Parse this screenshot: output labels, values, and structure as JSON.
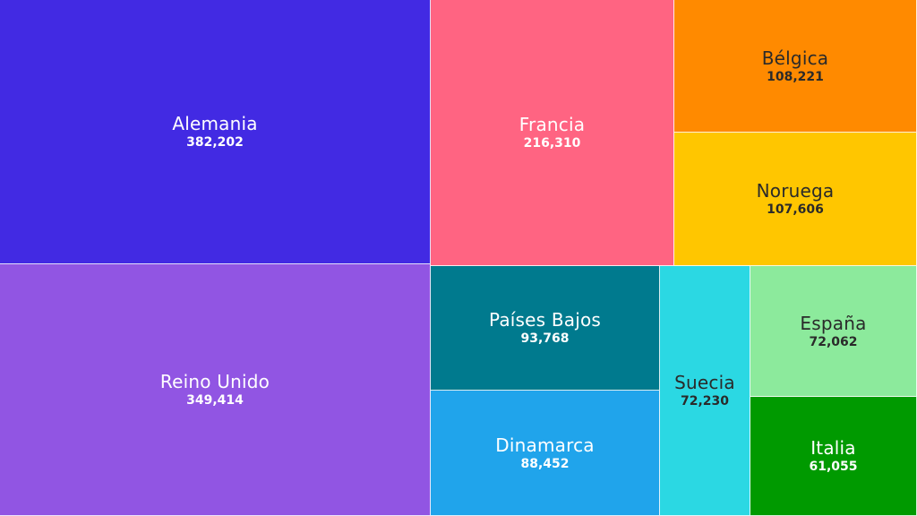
{
  "chart_data": {
    "type": "treemap",
    "items": [
      {
        "name": "Alemania",
        "value_label": "382,202",
        "value": 382202,
        "color": "#422ae3",
        "text": "light"
      },
      {
        "name": "Reino Unido",
        "value_label": "349,414",
        "value": 349414,
        "color": "#9155e3",
        "text": "light"
      },
      {
        "name": "Francia",
        "value_label": "216,310",
        "value": 216310,
        "color": "#ff6482",
        "text": "light"
      },
      {
        "name": "Bélgica",
        "value_label": "108,221",
        "value": 108221,
        "color": "#ff8a00",
        "text": "dark"
      },
      {
        "name": "Noruega",
        "value_label": "107,606",
        "value": 107606,
        "color": "#ffc600",
        "text": "dark"
      },
      {
        "name": "Países Bajos",
        "value_label": "93,768",
        "value": 93768,
        "color": "#007a8e",
        "text": "light"
      },
      {
        "name": "Dinamarca",
        "value_label": "88,452",
        "value": 88452,
        "color": "#20a4eb",
        "text": "light"
      },
      {
        "name": "Suecia",
        "value_label": "72,230",
        "value": 72230,
        "color": "#2bd8e3",
        "text": "dark"
      },
      {
        "name": "España",
        "value_label": "72,062",
        "value": 72062,
        "color": "#8cea9c",
        "text": "dark"
      },
      {
        "name": "Italia",
        "value_label": "61,055",
        "value": 61055,
        "color": "#009a00",
        "text": "light"
      }
    ]
  }
}
